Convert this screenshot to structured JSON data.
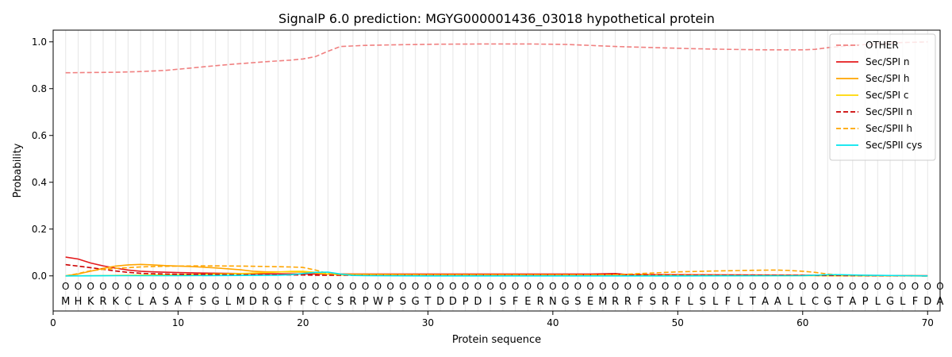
{
  "chart_data": {
    "type": "line",
    "title": "SignalP 6.0 prediction: MGYG000001436_03018 hypothetical protein",
    "xlabel": "Protein sequence",
    "ylabel": "Probability",
    "xlim": [
      0,
      71
    ],
    "ylim": [
      -0.15,
      1.05
    ],
    "xticks": [
      0,
      10,
      20,
      30,
      40,
      50,
      60,
      70
    ],
    "yticks": [
      0.0,
      0.2,
      0.4,
      0.6,
      0.8,
      1.0
    ],
    "ytick_labels": [
      "0.0",
      "0.2",
      "0.4",
      "0.6",
      "0.8",
      "1.0"
    ],
    "sequence": [
      "M",
      "H",
      "K",
      "R",
      "K",
      "C",
      "L",
      "A",
      "S",
      "A",
      "F",
      "S",
      "G",
      "L",
      "M",
      "D",
      "R",
      "G",
      "F",
      "F",
      "C",
      "C",
      "S",
      "R",
      "P",
      "W",
      "P",
      "S",
      "G",
      "T",
      "D",
      "D",
      "P",
      "D",
      "I",
      "S",
      "F",
      "E",
      "R",
      "N",
      "G",
      "S",
      "E",
      "M",
      "R",
      "R",
      "F",
      "S",
      "R",
      "F",
      "L",
      "S",
      "L",
      "F",
      "L",
      "T",
      "A",
      "A",
      "L",
      "L",
      "C",
      "G",
      "T",
      "A",
      "P",
      "L",
      "G",
      "L",
      "F",
      "D",
      "A"
    ],
    "position_marker": "O",
    "legend_position": "upper right",
    "grid_x": true,
    "series": [
      {
        "name": "OTHER",
        "color": "#f08080",
        "dash": "dashed",
        "points": [
          [
            1,
            0.868
          ],
          [
            3,
            0.869
          ],
          [
            5,
            0.87
          ],
          [
            7,
            0.873
          ],
          [
            9,
            0.878
          ],
          [
            11,
            0.888
          ],
          [
            13,
            0.898
          ],
          [
            15,
            0.907
          ],
          [
            17,
            0.915
          ],
          [
            19,
            0.922
          ],
          [
            20,
            0.927
          ],
          [
            21,
            0.937
          ],
          [
            22,
            0.96
          ],
          [
            23,
            0.98
          ],
          [
            25,
            0.985
          ],
          [
            28,
            0.988
          ],
          [
            31,
            0.99
          ],
          [
            35,
            0.991
          ],
          [
            38,
            0.991
          ],
          [
            41,
            0.989
          ],
          [
            43,
            0.985
          ],
          [
            45,
            0.98
          ],
          [
            47,
            0.977
          ],
          [
            49,
            0.974
          ],
          [
            51,
            0.971
          ],
          [
            54,
            0.968
          ],
          [
            57,
            0.966
          ],
          [
            60,
            0.966
          ],
          [
            61,
            0.968
          ],
          [
            62,
            0.975
          ],
          [
            64,
            0.985
          ],
          [
            66,
            0.992
          ],
          [
            68,
            0.997
          ],
          [
            70,
            1.0
          ]
        ]
      },
      {
        "name": "Sec/SPI n",
        "color": "#e41a1c",
        "dash": "solid",
        "points": [
          [
            1,
            0.08
          ],
          [
            2,
            0.072
          ],
          [
            3,
            0.055
          ],
          [
            4,
            0.043
          ],
          [
            5,
            0.033
          ],
          [
            6,
            0.025
          ],
          [
            7,
            0.02
          ],
          [
            8,
            0.017
          ],
          [
            10,
            0.014
          ],
          [
            12,
            0.012
          ],
          [
            15,
            0.01
          ],
          [
            20,
            0.008
          ],
          [
            25,
            0.008
          ],
          [
            30,
            0.008
          ],
          [
            40,
            0.008
          ],
          [
            43,
            0.008
          ],
          [
            45,
            0.01
          ],
          [
            46,
            0.006
          ],
          [
            50,
            0.005
          ],
          [
            55,
            0.004
          ],
          [
            60,
            0.003
          ],
          [
            65,
            0.002
          ],
          [
            70,
            0.001
          ]
        ]
      },
      {
        "name": "Sec/SPI h",
        "color": "#ffa500",
        "dash": "solid",
        "points": [
          [
            1,
            0.0
          ],
          [
            2,
            0.008
          ],
          [
            3,
            0.02
          ],
          [
            4,
            0.032
          ],
          [
            5,
            0.042
          ],
          [
            6,
            0.047
          ],
          [
            7,
            0.049
          ],
          [
            8,
            0.047
          ],
          [
            9,
            0.044
          ],
          [
            11,
            0.04
          ],
          [
            13,
            0.034
          ],
          [
            15,
            0.026
          ],
          [
            16,
            0.02
          ],
          [
            17,
            0.017
          ],
          [
            19,
            0.017
          ],
          [
            20,
            0.016
          ],
          [
            21,
            0.012
          ],
          [
            22,
            0.008
          ],
          [
            23,
            0.007
          ],
          [
            25,
            0.007
          ],
          [
            30,
            0.006
          ],
          [
            40,
            0.005
          ],
          [
            45,
            0.004
          ],
          [
            50,
            0.003
          ],
          [
            55,
            0.002
          ],
          [
            60,
            0.002
          ],
          [
            65,
            0.001
          ],
          [
            70,
            0.0
          ]
        ]
      },
      {
        "name": "Sec/SPI c",
        "color": "#ffd700",
        "dash": "solid",
        "points": [
          [
            1,
            0.0
          ],
          [
            5,
            0.002
          ],
          [
            10,
            0.005
          ],
          [
            15,
            0.01
          ],
          [
            18,
            0.016
          ],
          [
            19,
            0.019
          ],
          [
            20,
            0.02
          ],
          [
            21,
            0.015
          ],
          [
            22,
            0.008
          ],
          [
            23,
            0.004
          ],
          [
            25,
            0.002
          ],
          [
            30,
            0.001
          ],
          [
            40,
            0.001
          ],
          [
            50,
            0.001
          ],
          [
            60,
            0.001
          ],
          [
            70,
            0.0
          ]
        ]
      },
      {
        "name": "Sec/SPII n",
        "color": "#cc0000",
        "dash": "dashed",
        "points": [
          [
            1,
            0.048
          ],
          [
            2,
            0.042
          ],
          [
            3,
            0.035
          ],
          [
            4,
            0.028
          ],
          [
            5,
            0.021
          ],
          [
            6,
            0.015
          ],
          [
            7,
            0.011
          ],
          [
            8,
            0.009
          ],
          [
            10,
            0.007
          ],
          [
            15,
            0.005
          ],
          [
            20,
            0.004
          ],
          [
            21,
            0.003
          ],
          [
            25,
            0.003
          ],
          [
            30,
            0.003
          ],
          [
            40,
            0.003
          ],
          [
            44,
            0.004
          ],
          [
            45,
            0.008
          ],
          [
            46,
            0.003
          ],
          [
            50,
            0.002
          ],
          [
            60,
            0.002
          ],
          [
            65,
            0.001
          ],
          [
            70,
            0.0
          ]
        ]
      },
      {
        "name": "Sec/SPII h",
        "color": "#ffa500",
        "dash": "dashed",
        "points": [
          [
            1,
            0.0
          ],
          [
            2,
            0.01
          ],
          [
            3,
            0.022
          ],
          [
            4,
            0.028
          ],
          [
            5,
            0.032
          ],
          [
            6,
            0.035
          ],
          [
            7,
            0.038
          ],
          [
            8,
            0.04
          ],
          [
            10,
            0.042
          ],
          [
            12,
            0.043
          ],
          [
            15,
            0.042
          ],
          [
            17,
            0.04
          ],
          [
            19,
            0.038
          ],
          [
            20,
            0.036
          ],
          [
            21,
            0.025
          ],
          [
            22,
            0.01
          ],
          [
            23,
            0.005
          ],
          [
            25,
            0.003
          ],
          [
            30,
            0.003
          ],
          [
            40,
            0.003
          ],
          [
            45,
            0.005
          ],
          [
            47,
            0.01
          ],
          [
            50,
            0.017
          ],
          [
            53,
            0.021
          ],
          [
            56,
            0.024
          ],
          [
            58,
            0.025
          ],
          [
            59,
            0.023
          ],
          [
            60,
            0.02
          ],
          [
            61,
            0.015
          ],
          [
            62,
            0.008
          ],
          [
            63,
            0.004
          ],
          [
            65,
            0.002
          ],
          [
            70,
            0.0
          ]
        ]
      },
      {
        "name": "Sec/SPII cys",
        "color": "#00e5ee",
        "dash": "solid",
        "points": [
          [
            1,
            0.0
          ],
          [
            5,
            0.001
          ],
          [
            10,
            0.001
          ],
          [
            15,
            0.002
          ],
          [
            18,
            0.003
          ],
          [
            19,
            0.005
          ],
          [
            20,
            0.01
          ],
          [
            21,
            0.015
          ],
          [
            22,
            0.016
          ],
          [
            23,
            0.008
          ],
          [
            24,
            0.002
          ],
          [
            25,
            0.001
          ],
          [
            30,
            0.0
          ],
          [
            40,
            0.0
          ],
          [
            50,
            0.0
          ],
          [
            60,
            0.001
          ],
          [
            61,
            0.003
          ],
          [
            62,
            0.005
          ],
          [
            63,
            0.005
          ],
          [
            65,
            0.003
          ],
          [
            70,
            0.0
          ]
        ]
      }
    ]
  }
}
